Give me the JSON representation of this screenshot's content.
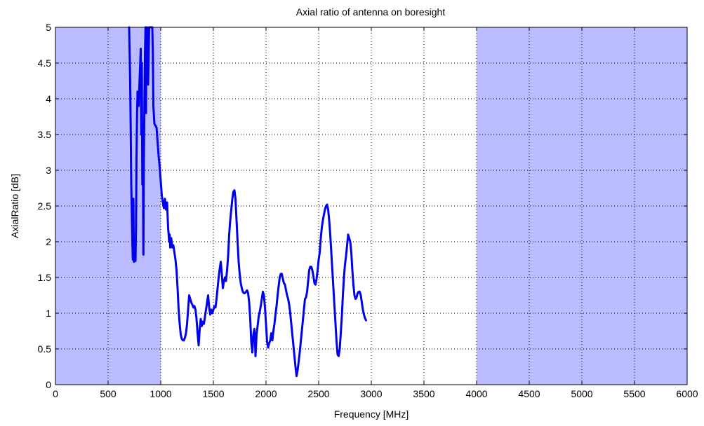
{
  "chart_data": {
    "type": "line",
    "title": "Axial ratio of antenna on boresight",
    "xlabel": "Frequency [MHz]",
    "ylabel": "AxialRatio [dB]",
    "xlim": [
      0,
      6000
    ],
    "ylim": [
      0,
      5
    ],
    "grid": true,
    "x_ticks": [
      0,
      500,
      1000,
      1500,
      2000,
      2500,
      3000,
      3500,
      4000,
      4500,
      5000,
      5500,
      6000
    ],
    "y_ticks": [
      0,
      0.5,
      1,
      1.5,
      2,
      2.5,
      3,
      3.5,
      4,
      4.5,
      5
    ],
    "x_tick_labels": [
      "0",
      "500",
      "1000",
      "1500",
      "2000",
      "2500",
      "3000",
      "3500",
      "4000",
      "4500",
      "5000",
      "5500",
      "6000"
    ],
    "y_tick_labels": [
      "0",
      "0.5",
      "1",
      "1.5",
      "2",
      "2.5",
      "3",
      "3.5",
      "4",
      "4.5",
      "5"
    ],
    "shaded_regions": [
      {
        "x_start": 0,
        "x_end": 1000,
        "color": "#bbbbff"
      },
      {
        "x_start": 4000,
        "x_end": 6000,
        "color": "#bbbbff"
      }
    ],
    "series": [
      {
        "color": "#0000ee",
        "points": [
          [
            700,
            5.0
          ],
          [
            705,
            4.6
          ],
          [
            710,
            4.2
          ],
          [
            715,
            3.5
          ],
          [
            720,
            2.8
          ],
          [
            725,
            2.4
          ],
          [
            730,
            2.0
          ],
          [
            735,
            1.75
          ],
          [
            740,
            2.6
          ],
          [
            745,
            1.72
          ],
          [
            750,
            1.9
          ],
          [
            760,
            1.73
          ],
          [
            765,
            2.2
          ],
          [
            770,
            3.2
          ],
          [
            775,
            3.8
          ],
          [
            780,
            4.1
          ],
          [
            790,
            3.9
          ],
          [
            800,
            4.3
          ],
          [
            810,
            4.7
          ],
          [
            815,
            3.5
          ],
          [
            820,
            4.5
          ],
          [
            825,
            2.8
          ],
          [
            830,
            3.3
          ],
          [
            835,
            1.82
          ],
          [
            840,
            3.2
          ],
          [
            845,
            4.0
          ],
          [
            850,
            4.6
          ],
          [
            855,
            5.0
          ],
          [
            860,
            3.8
          ],
          [
            865,
            4.8
          ],
          [
            870,
            5.0
          ],
          [
            880,
            4.2
          ],
          [
            890,
            5.0
          ],
          [
            900,
            5.0
          ],
          [
            920,
            5.0
          ],
          [
            925,
            4.6
          ],
          [
            930,
            3.9
          ],
          [
            940,
            3.65
          ],
          [
            960,
            3.6
          ],
          [
            970,
            3.4
          ],
          [
            980,
            3.2
          ],
          [
            990,
            3.05
          ],
          [
            1000,
            2.85
          ],
          [
            1010,
            2.65
          ],
          [
            1020,
            2.55
          ],
          [
            1030,
            2.47
          ],
          [
            1040,
            2.6
          ],
          [
            1050,
            2.45
          ],
          [
            1060,
            2.55
          ],
          [
            1070,
            2.2
          ],
          [
            1080,
            2.0
          ],
          [
            1085,
            2.1
          ],
          [
            1090,
            1.92
          ],
          [
            1100,
            2.05
          ],
          [
            1110,
            1.92
          ],
          [
            1120,
            1.95
          ],
          [
            1130,
            1.85
          ],
          [
            1140,
            1.75
          ],
          [
            1150,
            1.6
          ],
          [
            1160,
            1.35
          ],
          [
            1170,
            1.05
          ],
          [
            1180,
            0.85
          ],
          [
            1190,
            0.7
          ],
          [
            1200,
            0.64
          ],
          [
            1210,
            0.62
          ],
          [
            1220,
            0.62
          ],
          [
            1230,
            0.66
          ],
          [
            1240,
            0.72
          ],
          [
            1250,
            0.85
          ],
          [
            1260,
            1.05
          ],
          [
            1270,
            1.25
          ],
          [
            1280,
            1.2
          ],
          [
            1290,
            1.15
          ],
          [
            1300,
            1.12
          ],
          [
            1310,
            1.08
          ],
          [
            1320,
            1.1
          ],
          [
            1330,
            1.05
          ],
          [
            1340,
            0.92
          ],
          [
            1350,
            0.72
          ],
          [
            1360,
            0.55
          ],
          [
            1370,
            0.78
          ],
          [
            1380,
            0.92
          ],
          [
            1390,
            0.82
          ],
          [
            1400,
            0.88
          ],
          [
            1410,
            0.85
          ],
          [
            1420,
            0.95
          ],
          [
            1430,
            1.05
          ],
          [
            1440,
            1.15
          ],
          [
            1450,
            1.25
          ],
          [
            1460,
            1.08
          ],
          [
            1470,
            0.98
          ],
          [
            1480,
            1.05
          ],
          [
            1490,
            1.0
          ],
          [
            1500,
            1.05
          ],
          [
            1510,
            1.1
          ],
          [
            1520,
            1.08
          ],
          [
            1530,
            1.2
          ],
          [
            1540,
            1.35
          ],
          [
            1550,
            1.5
          ],
          [
            1560,
            1.62
          ],
          [
            1570,
            1.72
          ],
          [
            1580,
            1.55
          ],
          [
            1590,
            1.35
          ],
          [
            1600,
            1.45
          ],
          [
            1610,
            1.5
          ],
          [
            1620,
            1.45
          ],
          [
            1630,
            1.6
          ],
          [
            1640,
            1.8
          ],
          [
            1650,
            2.1
          ],
          [
            1660,
            2.3
          ],
          [
            1670,
            2.45
          ],
          [
            1680,
            2.6
          ],
          [
            1690,
            2.7
          ],
          [
            1700,
            2.72
          ],
          [
            1710,
            2.6
          ],
          [
            1720,
            2.3
          ],
          [
            1730,
            2.0
          ],
          [
            1740,
            1.72
          ],
          [
            1750,
            1.55
          ],
          [
            1760,
            1.42
          ],
          [
            1770,
            1.35
          ],
          [
            1780,
            1.3
          ],
          [
            1790,
            1.28
          ],
          [
            1800,
            1.28
          ],
          [
            1810,
            1.3
          ],
          [
            1820,
            1.32
          ],
          [
            1830,
            1.28
          ],
          [
            1840,
            1.15
          ],
          [
            1850,
            0.92
          ],
          [
            1860,
            0.6
          ],
          [
            1870,
            0.45
          ],
          [
            1875,
            0.6
          ],
          [
            1880,
            0.7
          ],
          [
            1890,
            0.78
          ],
          [
            1895,
            0.6
          ],
          [
            1900,
            0.4
          ],
          [
            1905,
            0.55
          ],
          [
            1910,
            0.7
          ],
          [
            1920,
            0.82
          ],
          [
            1930,
            0.95
          ],
          [
            1940,
            1.02
          ],
          [
            1950,
            1.1
          ],
          [
            1960,
            1.2
          ],
          [
            1970,
            1.3
          ],
          [
            1980,
            1.25
          ],
          [
            1990,
            1.08
          ],
          [
            2000,
            0.85
          ],
          [
            2010,
            0.6
          ],
          [
            2020,
            0.52
          ],
          [
            2030,
            0.58
          ],
          [
            2040,
            0.62
          ],
          [
            2050,
            0.72
          ],
          [
            2060,
            0.62
          ],
          [
            2070,
            0.75
          ],
          [
            2080,
            0.85
          ],
          [
            2090,
            0.98
          ],
          [
            2100,
            1.1
          ],
          [
            2110,
            1.25
          ],
          [
            2120,
            1.38
          ],
          [
            2130,
            1.5
          ],
          [
            2140,
            1.55
          ],
          [
            2150,
            1.55
          ],
          [
            2160,
            1.48
          ],
          [
            2170,
            1.42
          ],
          [
            2180,
            1.4
          ],
          [
            2190,
            1.32
          ],
          [
            2200,
            1.25
          ],
          [
            2210,
            1.2
          ],
          [
            2220,
            1.12
          ],
          [
            2230,
            1.0
          ],
          [
            2240,
            0.85
          ],
          [
            2250,
            0.7
          ],
          [
            2260,
            0.55
          ],
          [
            2270,
            0.4
          ],
          [
            2280,
            0.25
          ],
          [
            2290,
            0.12
          ],
          [
            2300,
            0.2
          ],
          [
            2310,
            0.32
          ],
          [
            2320,
            0.45
          ],
          [
            2330,
            0.6
          ],
          [
            2340,
            0.75
          ],
          [
            2350,
            0.9
          ],
          [
            2360,
            1.05
          ],
          [
            2370,
            1.2
          ],
          [
            2380,
            1.22
          ],
          [
            2390,
            1.3
          ],
          [
            2400,
            1.45
          ],
          [
            2410,
            1.6
          ],
          [
            2420,
            1.65
          ],
          [
            2430,
            1.65
          ],
          [
            2440,
            1.6
          ],
          [
            2450,
            1.52
          ],
          [
            2460,
            1.42
          ],
          [
            2470,
            1.4
          ],
          [
            2480,
            1.48
          ],
          [
            2490,
            1.6
          ],
          [
            2500,
            1.75
          ],
          [
            2510,
            1.85
          ],
          [
            2520,
            2.05
          ],
          [
            2530,
            2.2
          ],
          [
            2540,
            2.3
          ],
          [
            2550,
            2.38
          ],
          [
            2560,
            2.45
          ],
          [
            2570,
            2.5
          ],
          [
            2580,
            2.52
          ],
          [
            2590,
            2.45
          ],
          [
            2600,
            2.3
          ],
          [
            2610,
            2.1
          ],
          [
            2620,
            1.85
          ],
          [
            2630,
            1.6
          ],
          [
            2640,
            1.35
          ],
          [
            2650,
            1.1
          ],
          [
            2660,
            0.85
          ],
          [
            2670,
            0.6
          ],
          [
            2680,
            0.42
          ],
          [
            2690,
            0.4
          ],
          [
            2700,
            0.5
          ],
          [
            2710,
            0.72
          ],
          [
            2720,
            0.95
          ],
          [
            2730,
            1.25
          ],
          [
            2740,
            1.5
          ],
          [
            2750,
            1.68
          ],
          [
            2760,
            1.8
          ],
          [
            2770,
            1.95
          ],
          [
            2780,
            2.1
          ],
          [
            2790,
            2.05
          ],
          [
            2800,
            2.0
          ],
          [
            2810,
            1.85
          ],
          [
            2820,
            1.6
          ],
          [
            2830,
            1.4
          ],
          [
            2840,
            1.25
          ],
          [
            2850,
            1.2
          ],
          [
            2860,
            1.22
          ],
          [
            2870,
            1.28
          ],
          [
            2880,
            1.3
          ],
          [
            2890,
            1.3
          ],
          [
            2900,
            1.25
          ],
          [
            2910,
            1.15
          ],
          [
            2920,
            1.05
          ],
          [
            2930,
            0.98
          ],
          [
            2940,
            0.93
          ],
          [
            2950,
            0.9
          ]
        ]
      }
    ]
  }
}
